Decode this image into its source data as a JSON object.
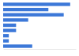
{
  "chart_data": {
    "type": "bar",
    "orientation": "horizontal",
    "categories": [
      null,
      null,
      null,
      null,
      null,
      null,
      null,
      null,
      null
    ],
    "values": [
      83,
      56,
      75,
      31,
      16,
      16,
      7,
      7,
      36
    ],
    "color": "#3c78d8",
    "xlim": [
      0,
      90
    ],
    "xticks": [
      0
    ],
    "tick_labels": false,
    "grid": false
  }
}
